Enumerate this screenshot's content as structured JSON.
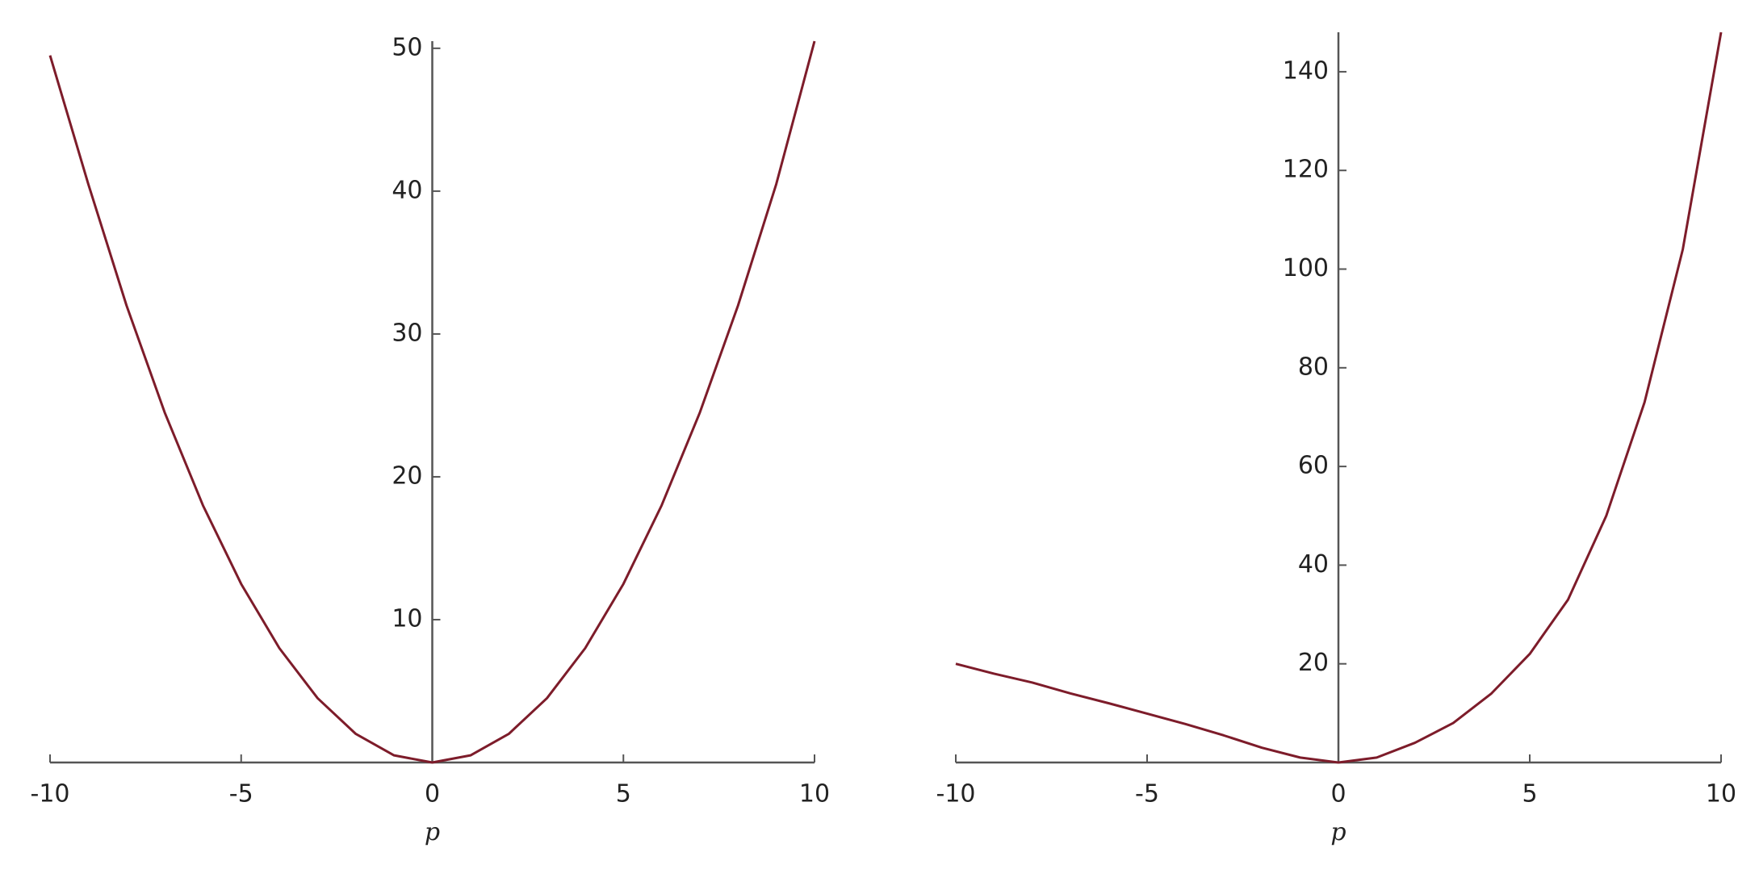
{
  "chart_data": [
    {
      "type": "line",
      "x_label": "p",
      "x": [
        -10,
        -9,
        -8,
        -7,
        -6,
        -5,
        -4,
        -3,
        -2,
        -1,
        0,
        1,
        2,
        3,
        4,
        5,
        6,
        7,
        8,
        9,
        10
      ],
      "values": [
        49.5,
        40.5,
        32,
        24.5,
        18,
        12.5,
        8,
        4.5,
        2,
        0.5,
        0,
        0.5,
        2,
        4.5,
        8,
        12.5,
        18,
        24.5,
        32,
        40.5,
        50.5
      ],
      "color": "#7d1c2a",
      "xlim": [
        -10,
        10
      ],
      "xticks": [
        -10,
        -5,
        0,
        5,
        10
      ],
      "ylim": [
        0,
        50.5
      ],
      "yticks": [
        10,
        20,
        30,
        40,
        50
      ]
    },
    {
      "type": "line",
      "x_label": "p",
      "x": [
        -10,
        -9,
        -8,
        -7,
        -6,
        -5,
        -4,
        -3,
        -2,
        -1,
        0,
        1,
        2,
        3,
        4,
        5,
        6,
        7,
        8,
        9,
        10
      ],
      "values": [
        20,
        18,
        16.2,
        14,
        12,
        9.9,
        7.8,
        5.5,
        3,
        1,
        0,
        1,
        4,
        8,
        14,
        22,
        33,
        50,
        73,
        104,
        148
      ],
      "color": "#7d1c2a",
      "xlim": [
        -10,
        10
      ],
      "xticks": [
        -10,
        -5,
        0,
        5,
        10
      ],
      "ylim": [
        0,
        148
      ],
      "yticks": [
        20,
        40,
        60,
        80,
        100,
        120,
        140
      ]
    }
  ]
}
